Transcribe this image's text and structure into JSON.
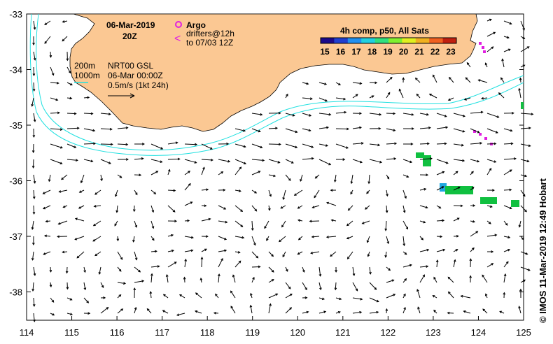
{
  "map": {
    "date": "06-Mar-2019",
    "time": "20Z",
    "product": "NRT00 GSL",
    "product_time": "06-Mar 00:00Z",
    "scale_label": "0.5m/s (1kt 24h)",
    "isobath_shallow": "200m",
    "isobath_deep": "1000m",
    "argo_label": "Argo",
    "drifters_label": "drifters@12h",
    "drifters_range": "to 07/03 12Z",
    "sst_title": "4h comp, p50, All Sats",
    "sst_ticks": [
      "15",
      "16",
      "17",
      "18",
      "19",
      "20",
      "21",
      "22",
      "23"
    ],
    "lon_ticks": [
      "114",
      "115",
      "116",
      "117",
      "118",
      "119",
      "120",
      "121",
      "122",
      "123",
      "124",
      "125"
    ],
    "lat_ticks": [
      "-33",
      "-34",
      "-35",
      "-36",
      "-37",
      "-38"
    ],
    "credit": "© IMOS 11-Mar-2019 12:49 Hobart",
    "colors": {
      "land": "#fbc893",
      "isobath": "#20e0e0",
      "argo": "#e020e0",
      "sst_patch": "#10c040"
    }
  }
}
